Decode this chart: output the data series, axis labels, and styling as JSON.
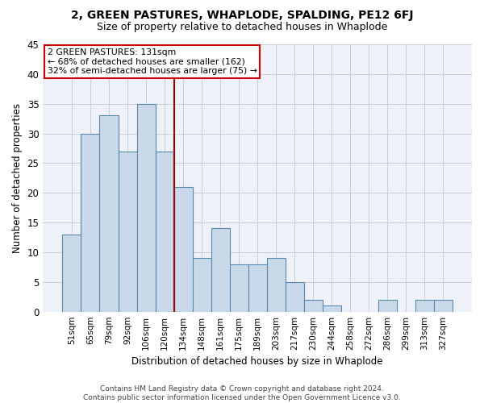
{
  "title": "2, GREEN PASTURES, WHAPLODE, SPALDING, PE12 6FJ",
  "subtitle": "Size of property relative to detached houses in Whaplode",
  "xlabel": "Distribution of detached houses by size in Whaplode",
  "ylabel": "Number of detached properties",
  "categories": [
    "51sqm",
    "65sqm",
    "79sqm",
    "92sqm",
    "106sqm",
    "120sqm",
    "134sqm",
    "148sqm",
    "161sqm",
    "175sqm",
    "189sqm",
    "203sqm",
    "217sqm",
    "230sqm",
    "244sqm",
    "258sqm",
    "272sqm",
    "286sqm",
    "299sqm",
    "313sqm",
    "327sqm"
  ],
  "values": [
    13,
    30,
    33,
    27,
    35,
    27,
    21,
    9,
    14,
    8,
    8,
    9,
    5,
    2,
    1,
    0,
    0,
    2,
    0,
    2,
    2
  ],
  "bar_color": "#c9d9ea",
  "bar_edge_color": "#5588aa",
  "vline_color": "#990000",
  "annotation_line1": "2 GREEN PASTURES: 131sqm",
  "annotation_line2": "← 68% of detached houses are smaller (162)",
  "annotation_line3": "32% of semi-detached houses are larger (75) →",
  "annotation_box_edge": "#cc0000",
  "ylim": [
    0,
    45
  ],
  "yticks": [
    0,
    5,
    10,
    15,
    20,
    25,
    30,
    35,
    40,
    45
  ],
  "footer_line1": "Contains HM Land Registry data © Crown copyright and database right 2024.",
  "footer_line2": "Contains public sector information licensed under the Open Government Licence v3.0.",
  "bg_color": "#eef2f8",
  "grid_color": "#c8ccd8",
  "vline_bar_index": 6
}
